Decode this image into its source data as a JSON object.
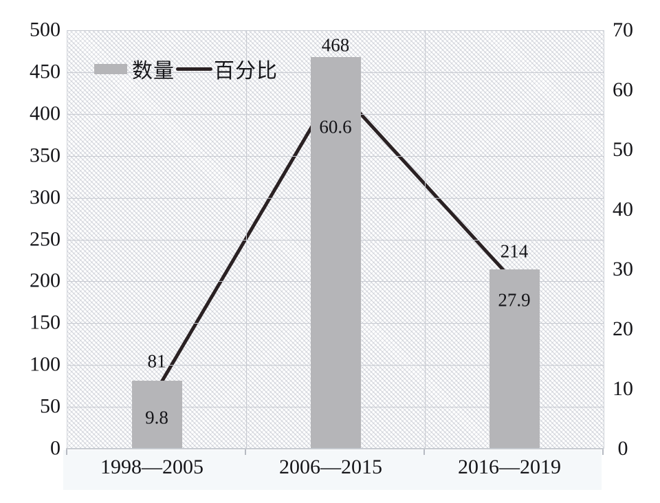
{
  "chart_data": {
    "type": "bar+line combo",
    "categories": [
      "1998—2005",
      "2006—2015",
      "2016—2019"
    ],
    "series": [
      {
        "name": "数量",
        "type": "bar",
        "axis": "left",
        "values": [
          81,
          468,
          214
        ],
        "color": "#b5b5b8"
      },
      {
        "name": "百分比",
        "type": "line",
        "axis": "right",
        "values": [
          9.8,
          60.6,
          27.9
        ],
        "color": "#2a2123"
      }
    ],
    "left_axis": {
      "min": 0,
      "max": 500,
      "ticks": [
        500,
        450,
        400,
        350,
        300,
        250,
        200,
        150,
        100,
        50,
        0
      ]
    },
    "right_axis": {
      "min": 0,
      "max": 70,
      "ticks": [
        70,
        60,
        50,
        40,
        30,
        20,
        10,
        0
      ]
    },
    "data_labels": {
      "bar_values": [
        "81",
        "468",
        "214"
      ],
      "line_values": [
        "9.8",
        "60.6",
        "27.9"
      ]
    },
    "grid": {
      "horizontal": "every 50 (left axis)",
      "vertical": "category boundaries",
      "on": true
    },
    "legend_position": "top-left inside plot",
    "plot_background": "light diagonal crosshatch"
  },
  "legend": {
    "bar_label": "数量",
    "line_label": "百分比"
  },
  "colors": {
    "bar": "#b5b5b8",
    "line": "#2a2123",
    "grid": "#c7cad1",
    "text": "#16161a",
    "hatch": "#dfe1e7",
    "background": "#ffffff"
  }
}
